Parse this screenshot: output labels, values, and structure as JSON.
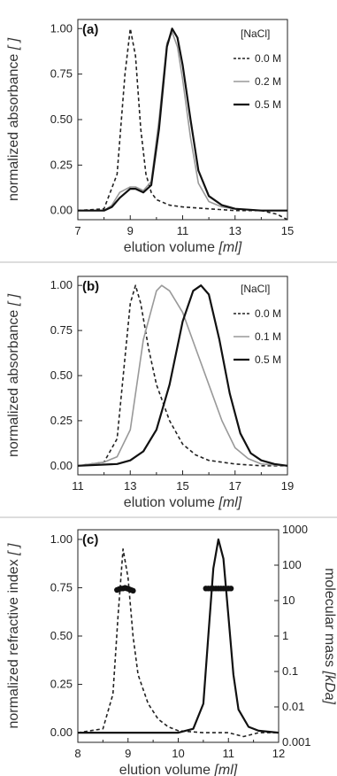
{
  "chart_data": [
    {
      "type": "line",
      "panel_label": "(a)",
      "xlabel": "elution volume",
      "xlabel_unit": "[ml]",
      "ylabel": "normalized absorbance",
      "ylabel_unit": "[ ]",
      "xlim": [
        7,
        15
      ],
      "ylim": [
        -0.05,
        1.05
      ],
      "xticks": [
        "7",
        "9",
        "11",
        "13",
        "15"
      ],
      "yticks": [
        "0.00",
        "0.25",
        "0.50",
        "0.75",
        "1.00"
      ],
      "legend_title": "[NaCl]",
      "legend_position": "top-right",
      "series": [
        {
          "name": "0.0 M",
          "style": "dashed",
          "color": "#222222",
          "x": [
            7.0,
            8.0,
            8.5,
            8.8,
            9.0,
            9.2,
            9.4,
            9.6,
            9.8,
            10.0,
            10.5,
            11.0,
            12.0,
            13.0,
            14.0,
            14.6,
            15.0
          ],
          "y": [
            0.0,
            0.01,
            0.2,
            0.75,
            1.0,
            0.85,
            0.45,
            0.2,
            0.1,
            0.06,
            0.03,
            0.02,
            0.01,
            0.0,
            0.0,
            -0.02,
            -0.05
          ]
        },
        {
          "name": "0.2 M",
          "style": "solid",
          "color": "#999999",
          "x": [
            7.0,
            8.0,
            8.3,
            8.6,
            9.0,
            9.2,
            9.5,
            9.8,
            10.1,
            10.4,
            10.6,
            10.8,
            11.0,
            11.3,
            11.6,
            12.0,
            12.5,
            13.0,
            14.0,
            15.0
          ],
          "y": [
            0.0,
            0.0,
            0.03,
            0.1,
            0.13,
            0.13,
            0.11,
            0.16,
            0.5,
            0.92,
            0.98,
            0.9,
            0.72,
            0.4,
            0.15,
            0.05,
            0.02,
            0.01,
            0.0,
            0.0
          ]
        },
        {
          "name": "0.5 M",
          "style": "solid",
          "color": "#111111",
          "x": [
            7.0,
            8.0,
            8.3,
            8.6,
            9.0,
            9.2,
            9.5,
            9.8,
            10.1,
            10.4,
            10.6,
            10.8,
            11.0,
            11.3,
            11.6,
            12.0,
            12.5,
            13.0,
            14.0,
            15.0
          ],
          "y": [
            0.0,
            0.0,
            0.02,
            0.07,
            0.12,
            0.12,
            0.1,
            0.14,
            0.45,
            0.9,
            1.0,
            0.95,
            0.8,
            0.5,
            0.22,
            0.08,
            0.03,
            0.01,
            0.0,
            0.0
          ]
        }
      ]
    },
    {
      "type": "line",
      "panel_label": "(b)",
      "xlabel": "elution volume",
      "xlabel_unit": "[ml]",
      "ylabel": "normalized absorbance",
      "ylabel_unit": "[ ]",
      "xlim": [
        11,
        19
      ],
      "ylim": [
        -0.05,
        1.05
      ],
      "xticks": [
        "11",
        "13",
        "15",
        "17",
        "19"
      ],
      "yticks": [
        "0.00",
        "0.25",
        "0.50",
        "0.75",
        "1.00"
      ],
      "legend_title": "[NaCl]",
      "legend_position": "top-right",
      "series": [
        {
          "name": "0.0 M",
          "style": "dashed",
          "color": "#222222",
          "x": [
            11.0,
            12.0,
            12.5,
            12.8,
            13.0,
            13.2,
            13.4,
            13.7,
            14.0,
            14.5,
            15.0,
            15.5,
            16.0,
            17.0,
            18.0,
            19.0
          ],
          "y": [
            0.0,
            0.02,
            0.15,
            0.6,
            0.9,
            1.0,
            0.9,
            0.65,
            0.45,
            0.25,
            0.12,
            0.06,
            0.03,
            0.01,
            0.0,
            0.0
          ]
        },
        {
          "name": "0.1 M",
          "style": "solid",
          "color": "#999999",
          "x": [
            11.0,
            12.0,
            12.5,
            13.0,
            13.5,
            14.0,
            14.2,
            14.5,
            15.0,
            15.5,
            16.0,
            16.5,
            17.0,
            17.5,
            18.0,
            19.0
          ],
          "y": [
            0.0,
            0.02,
            0.05,
            0.2,
            0.7,
            0.97,
            1.0,
            0.97,
            0.85,
            0.65,
            0.45,
            0.25,
            0.1,
            0.04,
            0.01,
            0.0
          ]
        },
        {
          "name": "0.5 M",
          "style": "solid",
          "color": "#111111",
          "x": [
            11.0,
            12.5,
            13.0,
            13.5,
            14.0,
            14.5,
            15.0,
            15.4,
            15.7,
            16.0,
            16.4,
            16.8,
            17.2,
            17.6,
            18.0,
            18.5,
            19.0
          ],
          "y": [
            0.0,
            0.01,
            0.03,
            0.08,
            0.2,
            0.45,
            0.8,
            0.97,
            1.0,
            0.95,
            0.7,
            0.4,
            0.18,
            0.07,
            0.03,
            0.01,
            0.0
          ]
        }
      ]
    },
    {
      "type": "line",
      "panel_label": "(c)",
      "xlabel": "elution volume",
      "xlabel_unit": "[ml]",
      "ylabel": "normalized refractive index",
      "ylabel_unit": "[ ]",
      "y2label": "molecular mass",
      "y2label_unit": "[kDa]",
      "xlim": [
        8,
        12
      ],
      "ylim": [
        -0.05,
        1.05
      ],
      "y2lim": [
        0.001,
        1000
      ],
      "y2scale": "log",
      "xticks": [
        "8",
        "9",
        "10",
        "11",
        "12"
      ],
      "yticks": [
        "0.00",
        "0.25",
        "0.50",
        "0.75",
        "1.00"
      ],
      "y2ticks": [
        "0.001",
        "0.01",
        "0.1",
        "1",
        "10",
        "100",
        "1000"
      ],
      "series": [
        {
          "style": "dashed",
          "color": "#222222",
          "x": [
            8.0,
            8.5,
            8.7,
            8.8,
            8.9,
            9.0,
            9.1,
            9.2,
            9.4,
            9.6,
            9.8,
            10.0,
            10.5,
            11.0,
            11.3,
            11.6,
            12.0
          ],
          "y": [
            0.0,
            0.02,
            0.2,
            0.6,
            0.95,
            0.8,
            0.5,
            0.3,
            0.15,
            0.07,
            0.03,
            0.01,
            0.0,
            0.0,
            -0.02,
            0.0,
            0.0
          ]
        },
        {
          "style": "solid",
          "color": "#111111",
          "x": [
            8.0,
            10.0,
            10.3,
            10.5,
            10.6,
            10.7,
            10.8,
            10.9,
            11.0,
            11.1,
            11.2,
            11.4,
            11.6,
            12.0
          ],
          "y": [
            0.0,
            0.0,
            0.02,
            0.15,
            0.5,
            0.85,
            1.0,
            0.9,
            0.6,
            0.3,
            0.12,
            0.03,
            0.01,
            0.0
          ]
        }
      ],
      "mass_points": [
        {
          "x": [
            8.78,
            8.82,
            8.86,
            8.9,
            8.94,
            8.98,
            9.02,
            9.06,
            9.1
          ],
          "y": [
            20,
            21,
            22,
            22,
            23,
            22,
            21,
            20,
            19
          ]
        },
        {
          "x": [
            10.55,
            10.6,
            10.65,
            10.7,
            10.75,
            10.8,
            10.85,
            10.9,
            10.95,
            11.0,
            11.05
          ],
          "y": [
            22,
            22,
            22,
            22,
            22,
            22,
            22,
            22,
            22,
            22,
            22
          ]
        }
      ]
    }
  ]
}
